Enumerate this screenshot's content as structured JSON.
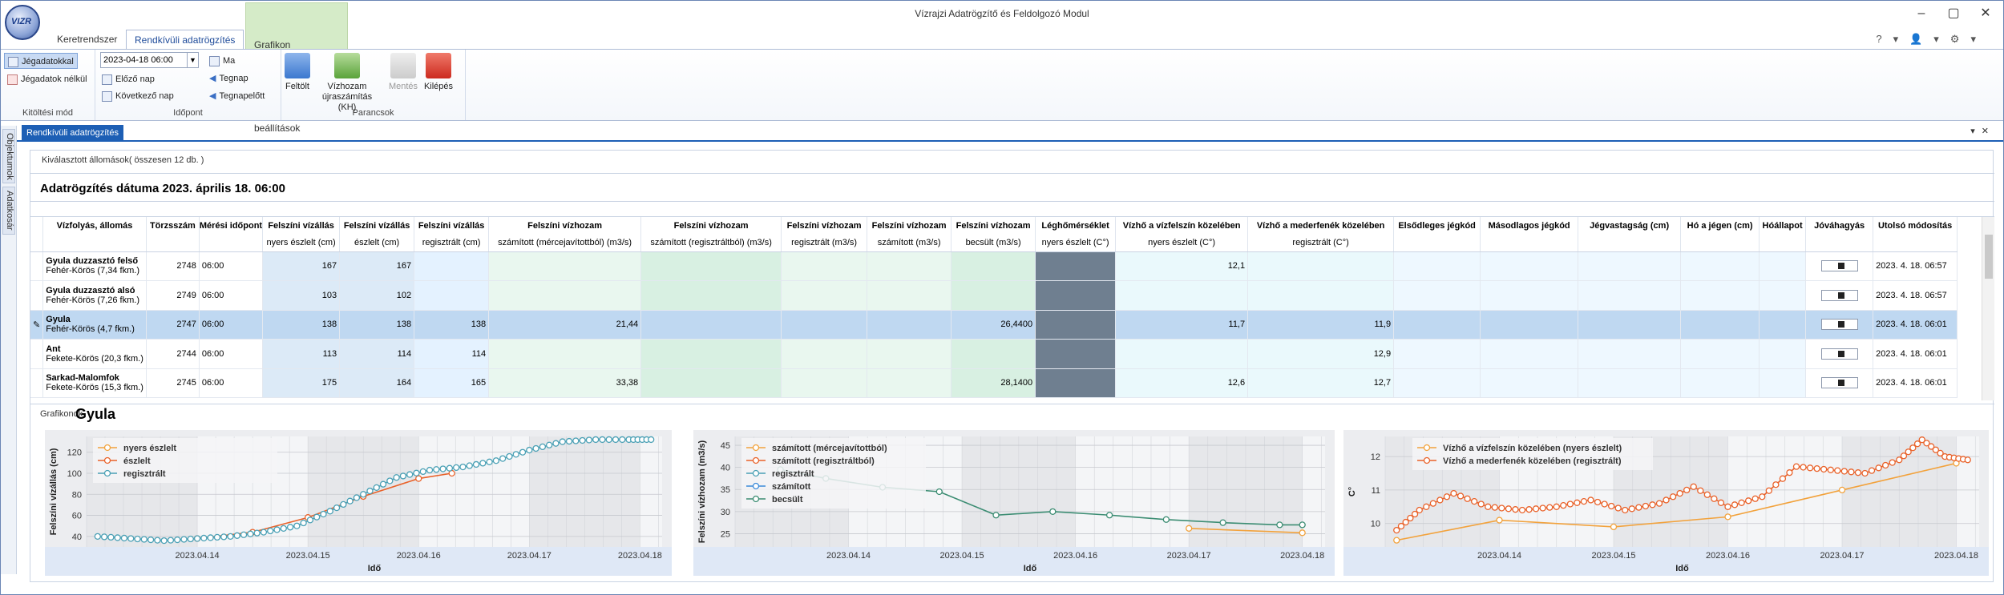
{
  "app": {
    "title": "Vízrajzi Adatrögzítő és Feldolgozó Modul",
    "logo_text": "VIZR"
  },
  "tabs": [
    "Keretrendszer",
    "Rendkívüli adatrögzítés",
    "Grafikon beállítások"
  ],
  "ribbon": {
    "mode": {
      "jegadatokkal": "Jégadatokkal",
      "jegadatok_nelkul": "Jégadatok nélkül",
      "label": "Kitöltési mód"
    },
    "time": {
      "date_value": "2023-04-18 06:00",
      "prev": "Előző nap",
      "next": "Következő nap",
      "today": "Ma",
      "yesterday": "Tegnap",
      "day_before": "Tegnapelőtt",
      "label": "Időpont"
    },
    "commands": {
      "upload": "Feltölt",
      "recalc1": "Vízhozam",
      "recalc2": "újraszámítás (KH)",
      "save": "Mentés",
      "exit": "Kilépés",
      "label": "Parancsok"
    }
  },
  "doc_tab": "Rendkívüli adatrögzítés",
  "side_tabs": [
    "Objektumok",
    "Adatkosár"
  ],
  "selected_info": "Kiválasztott állomások( összesen 12 db. )",
  "date_title": "Adatrögzítés dátuma 2023. április 18. 06:00",
  "table": {
    "headers": [
      "Vízfolyás, állomás",
      "Törzsszám",
      "Mérési időpont",
      "Felszíni vízállás",
      "Felszíni vízállás",
      "Felszíni vízállás",
      "Felszíni vízhozam",
      "Felszíni vízhozam",
      "Felszíni vízhozam",
      "Felszíni vízhozam",
      "Felszíni vízhozam",
      "Léghőmérséklet",
      "Vízhő a vízfelszín közelében",
      "Vízhő a mederfenék közelében",
      "Elsődleges jégkód",
      "Másodlagos jégkód",
      "Jégvastagság (cm)",
      "Hó a jégen (cm)",
      "Hóállapot",
      "Jóváhagyás",
      "Utolsó módosítás"
    ],
    "subheaders": [
      "",
      "",
      "",
      "nyers észlelt (cm)",
      "észlelt (cm)",
      "regisztrált (cm)",
      "számított (mércejavítottból) (m3/s)",
      "számított (regisztráltból) (m3/s)",
      "regisztrált (m3/s)",
      "számított (m3/s)",
      "becsült (m3/s)",
      "nyers észlelt (C°)",
      "nyers észlelt (C°)",
      "regisztrált (C°)",
      "",
      "",
      "",
      "",
      "",
      "",
      ""
    ],
    "rows": [
      {
        "name": "Gyula duzzasztó felső",
        "river": "Fehér-Körös (7,34 fkm.)",
        "id": "2748",
        "time": "06:00",
        "v1": "167",
        "v2": "167",
        "v3": "",
        "q1": "",
        "q2": "",
        "q3": "",
        "q4": "",
        "q5": "",
        "air": "",
        "w1": "12,1",
        "w2": "",
        "mod": "2023. 4. 18. 06:57"
      },
      {
        "name": "Gyula duzzasztó alsó",
        "river": "Fehér-Körös (7,26 fkm.)",
        "id": "2749",
        "time": "06:00",
        "v1": "103",
        "v2": "102",
        "v3": "",
        "q1": "",
        "q2": "",
        "q3": "",
        "q4": "",
        "q5": "",
        "air": "",
        "w1": "",
        "w2": "",
        "mod": "2023. 4. 18. 06:57"
      },
      {
        "name": "Gyula",
        "river": "Fehér-Körös (4,7 fkm.)",
        "id": "2747",
        "time": "06:00",
        "v1": "138",
        "v2": "138",
        "v3": "138",
        "q1": "21,44",
        "q2": "",
        "q3": "",
        "q4": "",
        "q5": "26,4400",
        "air": "",
        "w1": "11,7",
        "w2": "11,9",
        "mod": "2023. 4. 18. 06:01"
      },
      {
        "name": "Ant",
        "river": "Fekete-Körös (20,3 fkm.)",
        "id": "2744",
        "time": "06:00",
        "v1": "113",
        "v2": "114",
        "v3": "114",
        "q1": "",
        "q2": "",
        "q3": "",
        "q4": "",
        "q5": "",
        "air": "",
        "w1": "",
        "w2": "12,9",
        "mod": "2023. 4. 18. 06:01"
      },
      {
        "name": "Sarkad-Malomfok",
        "river": "Fekete-Körös (15,3 fkm.)",
        "id": "2745",
        "time": "06:00",
        "v1": "175",
        "v2": "164",
        "v3": "165",
        "q1": "33,38",
        "q2": "",
        "q3": "",
        "q4": "",
        "q5": "28,1400",
        "air": "",
        "w1": "12,6",
        "w2": "12,7",
        "mod": "2023. 4. 18. 06:01"
      }
    ]
  },
  "charts_section": {
    "label": "Grafikonok",
    "station": "Gyula"
  },
  "chart_data": [
    {
      "type": "line",
      "ylabel": "Felszíni vízállás (cm)",
      "xlabel": "Idő",
      "yticks": [
        40,
        60,
        80,
        100,
        120
      ],
      "ylim": [
        30,
        135
      ],
      "xticks": [
        "2023.04.14",
        "2023.04.15",
        "2023.04.16",
        "2023.04.17",
        "2023.04.18"
      ],
      "xlim": [
        13.0,
        18.2
      ],
      "series": [
        {
          "name": "nyers észlelt",
          "color": "#f2a23c",
          "x": [],
          "y": []
        },
        {
          "name": "észlelt",
          "color": "#e9622a",
          "x": [
            14.0,
            14.5,
            15.0,
            15.5,
            16.0,
            16.3
          ],
          "y": [
            38,
            44,
            58,
            78,
            95,
            100
          ]
        },
        {
          "name": "regisztrált",
          "color": "#4aa0b5",
          "x": [
            13.1,
            13.4,
            13.7,
            14.0,
            14.3,
            14.6,
            14.9,
            15.2,
            15.5,
            15.8,
            16.1,
            16.4,
            16.7,
            17.0,
            17.3,
            17.6,
            17.9,
            18.1
          ],
          "y": [
            40,
            38,
            36,
            38,
            40,
            44,
            50,
            64,
            80,
            96,
            103,
            106,
            112,
            122,
            130,
            132,
            132,
            132
          ]
        }
      ]
    },
    {
      "type": "line",
      "ylabel": "Felszíni vízhozam (m3/s)",
      "xlabel": "Idő",
      "yticks": [
        25,
        30,
        35,
        40,
        45
      ],
      "ylim": [
        22,
        47
      ],
      "xticks": [
        "2023.04.14",
        "2023.04.15",
        "2023.04.16",
        "2023.04.17",
        "2023.04.18"
      ],
      "xlim": [
        13.0,
        18.2
      ],
      "series": [
        {
          "name": "számított (mércejavítottból)",
          "color": "#f2a23c",
          "x": [
            17.0,
            18.0
          ],
          "y": [
            26.2,
            25.2
          ]
        },
        {
          "name": "számított (regisztráltból)",
          "color": "#e9622a",
          "x": [],
          "y": []
        },
        {
          "name": "regisztrált",
          "color": "#4aa0b5",
          "x": [],
          "y": []
        },
        {
          "name": "számított",
          "color": "#3b8ad9",
          "x": [],
          "y": []
        },
        {
          "name": "becsült",
          "color": "#3c8d73",
          "x": [
            13.4,
            13.8,
            14.3,
            14.8,
            15.3,
            15.8,
            16.3,
            16.8,
            17.3,
            17.8,
            18.0
          ],
          "y": [
            39.5,
            37.5,
            35.5,
            34.5,
            29.2,
            30.0,
            29.2,
            28.2,
            27.5,
            27.0,
            27.0
          ]
        }
      ]
    },
    {
      "type": "line",
      "ylabel": "C°",
      "xlabel": "Idő",
      "yticks": [
        10,
        11,
        12
      ],
      "ylim": [
        9.3,
        12.6
      ],
      "xticks": [
        "2023.04.14",
        "2023.04.15",
        "2023.04.16",
        "2023.04.17",
        "2023.04.18"
      ],
      "xlim": [
        13.0,
        18.2
      ],
      "series": [
        {
          "name": "Vízhő a vízfelszín közelében (nyers észlelt)",
          "color": "#f2a23c",
          "x": [
            13.1,
            14.0,
            15.0,
            16.0,
            17.0,
            18.0
          ],
          "y": [
            9.5,
            10.1,
            9.9,
            10.2,
            11.0,
            11.8
          ]
        },
        {
          "name": "Vízhő a mederfenék közelében (regisztrált)",
          "color": "#e9622a",
          "x": [
            13.1,
            13.3,
            13.6,
            13.9,
            14.2,
            14.5,
            14.8,
            15.1,
            15.4,
            15.7,
            16.0,
            16.3,
            16.6,
            16.9,
            17.2,
            17.5,
            17.7,
            17.9,
            18.1
          ],
          "y": [
            9.8,
            10.4,
            10.9,
            10.5,
            10.4,
            10.5,
            10.7,
            10.4,
            10.6,
            11.1,
            10.5,
            10.8,
            11.7,
            11.6,
            11.5,
            11.9,
            12.5,
            12.0,
            11.9
          ]
        }
      ]
    }
  ]
}
